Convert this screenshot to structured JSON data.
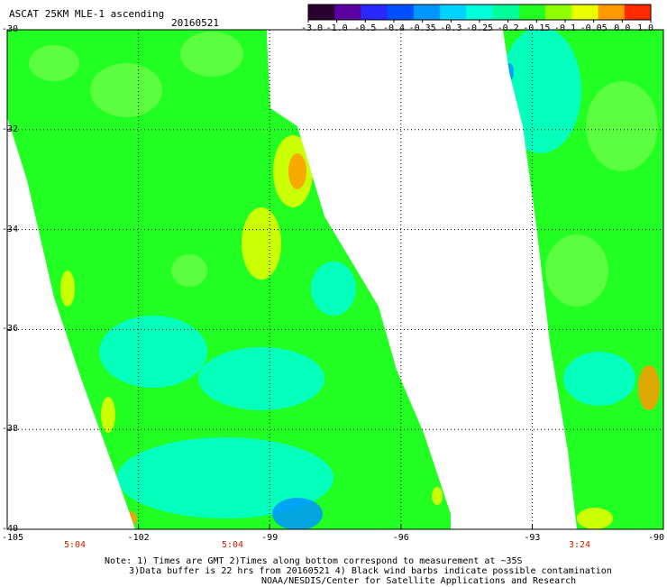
{
  "title": "ASCAT 25KM MLE-1 ascending",
  "date": "20160521",
  "colorbar": {
    "labels": [
      "-3.0",
      "-1.0",
      "-0.5",
      "-0.4",
      "-0.35",
      "-0.3",
      "-0.25",
      "-0.2",
      "-0.15",
      "-0.1",
      "-0.05",
      "0.0",
      "1.0"
    ],
    "colors": [
      "#2a0030",
      "#5a00a0",
      "#2828ff",
      "#0050ff",
      "#0096ff",
      "#00d2ff",
      "#00ffd8",
      "#00ff9a",
      "#22ff22",
      "#90ff00",
      "#e8ff00",
      "#ff9a00",
      "#ff2a00"
    ]
  },
  "axes": {
    "lat_labels": [
      "-30",
      "-32",
      "-34",
      "-36",
      "-38",
      "-40"
    ],
    "lon_labels": [
      "-105",
      "-102",
      "-99",
      "-96",
      "-93",
      "-90"
    ],
    "time_labels": [
      "5:04",
      "5:04",
      "3:24"
    ]
  },
  "notes": {
    "line1": "Note: 1) Times are GMT 2)Times along bottom correspond to measurement at ~35S",
    "line2": "3)Data buffer is 22 hrs from 20160521 4) Black wind barbs indicate possible contamination",
    "line3": "NOAA/NESDIS/Center for Satellite Applications and Research"
  },
  "palette": {
    "green": "#22ff22",
    "light_green": "#66ff44",
    "cyan": "#00ffd8",
    "blue": "#0096ff",
    "yellow": "#e8ff00",
    "orange": "#ff9a00"
  }
}
